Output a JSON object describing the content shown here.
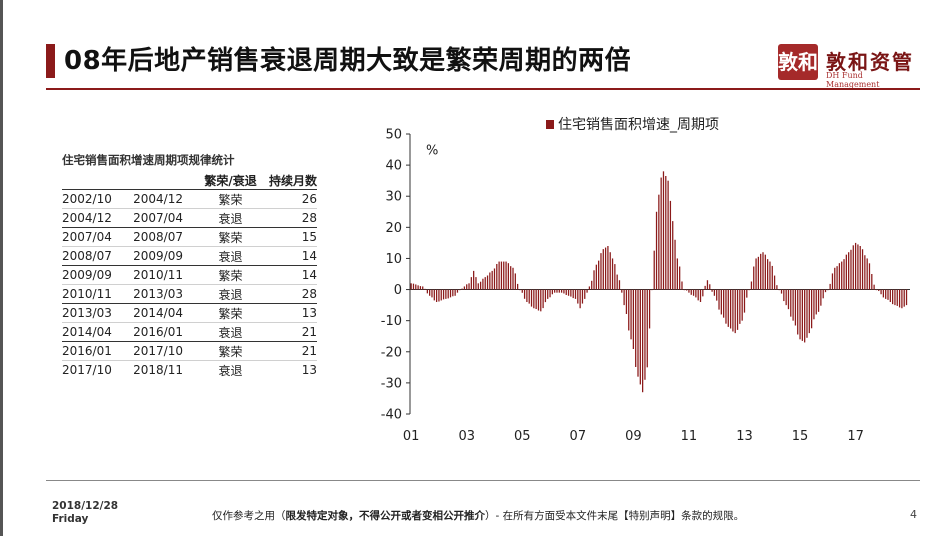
{
  "slide": {
    "title": "08年后地产销售衰退周期大致是繁荣周期的两倍",
    "page_number": "4"
  },
  "logo": {
    "seal_text": "敦和",
    "name": "敦和资管",
    "subtitle": "DH Fund Management"
  },
  "table": {
    "title": "住宅销售面积增速周期项规律统计",
    "headers": [
      "",
      "",
      "繁荣/衰退",
      "持续月数"
    ],
    "rows": [
      [
        "2002/10",
        "2004/12",
        "繁荣",
        "26"
      ],
      [
        "2004/12",
        "2007/04",
        "衰退",
        "28"
      ],
      [
        "2007/04",
        "2008/07",
        "繁荣",
        "15"
      ],
      [
        "2008/07",
        "2009/09",
        "衰退",
        "14"
      ],
      [
        "2009/09",
        "2010/11",
        "繁荣",
        "14"
      ],
      [
        "2010/11",
        "2013/03",
        "衰退",
        "28"
      ],
      [
        "2013/03",
        "2014/04",
        "繁荣",
        "13"
      ],
      [
        "2014/04",
        "2016/01",
        "衰退",
        "21"
      ],
      [
        "2016/01",
        "2017/10",
        "繁荣",
        "21"
      ],
      [
        "2017/10",
        "2018/11",
        "衰退",
        "13"
      ]
    ]
  },
  "chart_data": {
    "type": "bar",
    "legend": "住宅销售面积增速_周期项",
    "legend_position": "top",
    "unit_label": "%",
    "ylim": [
      -40,
      50
    ],
    "yticks": [
      50,
      40,
      30,
      20,
      10,
      0,
      -10,
      -20,
      -30,
      -40
    ],
    "xticks": [
      "01",
      "03",
      "05",
      "07",
      "09",
      "11",
      "13",
      "15",
      "17"
    ],
    "x_start": "2001-01",
    "x_end": "2018-11",
    "grid": false,
    "color": "#8b1a1a",
    "anchors": [
      [
        "2001-01",
        2
      ],
      [
        "2001-06",
        1
      ],
      [
        "2001-09",
        -2
      ],
      [
        "2001-12",
        -4
      ],
      [
        "2002-04",
        -3
      ],
      [
        "2002-08",
        -2
      ],
      [
        "2002-10",
        0
      ],
      [
        "2003-02",
        2
      ],
      [
        "2003-04",
        6
      ],
      [
        "2003-06",
        2
      ],
      [
        "2003-09",
        4
      ],
      [
        "2003-12",
        6
      ],
      [
        "2004-03",
        9
      ],
      [
        "2004-06",
        9
      ],
      [
        "2004-09",
        7
      ],
      [
        "2004-12",
        0
      ],
      [
        "2005-03",
        -4
      ],
      [
        "2005-06",
        -6
      ],
      [
        "2005-09",
        -7
      ],
      [
        "2005-12",
        -3
      ],
      [
        "2006-03",
        -1
      ],
      [
        "2006-06",
        -1
      ],
      [
        "2006-09",
        -2
      ],
      [
        "2006-12",
        -3
      ],
      [
        "2007-02",
        -6
      ],
      [
        "2007-04",
        -3
      ],
      [
        "2007-06",
        1
      ],
      [
        "2007-09",
        8
      ],
      [
        "2007-12",
        13
      ],
      [
        "2008-02",
        14
      ],
      [
        "2008-04",
        10
      ],
      [
        "2008-07",
        3
      ],
      [
        "2008-09",
        -5
      ],
      [
        "2008-12",
        -16
      ],
      [
        "2009-03",
        -28
      ],
      [
        "2009-05",
        -33
      ],
      [
        "2009-07",
        -25
      ],
      [
        "2009-09",
        0
      ],
      [
        "2009-11",
        25
      ],
      [
        "2010-01",
        36
      ],
      [
        "2010-02",
        38
      ],
      [
        "2010-04",
        35
      ],
      [
        "2010-06",
        22
      ],
      [
        "2010-08",
        10
      ],
      [
        "2010-11",
        0
      ],
      [
        "2011-03",
        -2
      ],
      [
        "2011-06",
        -4
      ],
      [
        "2011-09",
        3
      ],
      [
        "2011-12",
        -2
      ],
      [
        "2012-03",
        -8
      ],
      [
        "2012-06",
        -12
      ],
      [
        "2012-09",
        -14
      ],
      [
        "2012-12",
        -10
      ],
      [
        "2013-03",
        0
      ],
      [
        "2013-06",
        10
      ],
      [
        "2013-09",
        12
      ],
      [
        "2013-12",
        9
      ],
      [
        "2014-04",
        0
      ],
      [
        "2014-07",
        -5
      ],
      [
        "2014-10",
        -10
      ],
      [
        "2015-01",
        -16
      ],
      [
        "2015-03",
        -17
      ],
      [
        "2015-05",
        -14
      ],
      [
        "2015-08",
        -8
      ],
      [
        "2016-01",
        0
      ],
      [
        "2016-04",
        7
      ],
      [
        "2016-07",
        9
      ],
      [
        "2016-10",
        12
      ],
      [
        "2017-01",
        15
      ],
      [
        "2017-03",
        14
      ],
      [
        "2017-06",
        10
      ],
      [
        "2017-10",
        0
      ],
      [
        "2018-02",
        -3
      ],
      [
        "2018-06",
        -5
      ],
      [
        "2018-09",
        -6
      ],
      [
        "2018-11",
        -5
      ]
    ]
  },
  "footer": {
    "date": "2018/12/28",
    "weekday": "Friday",
    "note_prefix": "仅作参考之用（",
    "note_bold": "限发特定对象，不得公开或者变相公开推介",
    "note_suffix": "）- 在所有方面受本文件末尾【特别声明】条款的规限。"
  }
}
